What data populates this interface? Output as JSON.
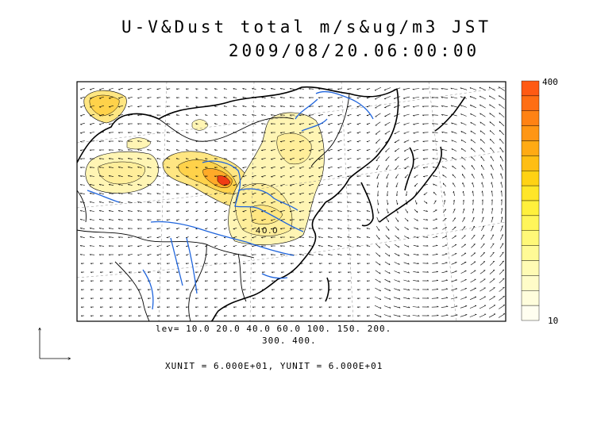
{
  "title": {
    "line1": "U-V&Dust total m/s&ug/m3 JST",
    "line2": "2009/08/20.06:00:00"
  },
  "legend": {
    "levels_line1": "lev= 10.0 20.0 40.0 60.0 100. 150. 200.",
    "levels_line2": "300. 400.",
    "units": "XUNIT = 6.000E+01, YUNIT = 6.000E+01"
  },
  "colorbar": {
    "max_label": "400",
    "min_label": "10",
    "colors": [
      "#ff5a14",
      "#ff6e14",
      "#ff8214",
      "#ff9614",
      "#ffaa14",
      "#ffbe14",
      "#ffd214",
      "#ffe628",
      "#fff03c",
      "#fff55a",
      "#fff878",
      "#fffa96",
      "#fffbb4",
      "#fffcc8",
      "#fffddc",
      "#fffef0"
    ]
  },
  "map": {
    "contour_label": "40.0",
    "colors": {
      "coast": "#000000",
      "river": "#1e64dc",
      "dust_low": "#fff5b4",
      "dust_mid": "#ffe682",
      "dust_high": "#ffb428",
      "dust_peak": "#f03c14"
    }
  }
}
